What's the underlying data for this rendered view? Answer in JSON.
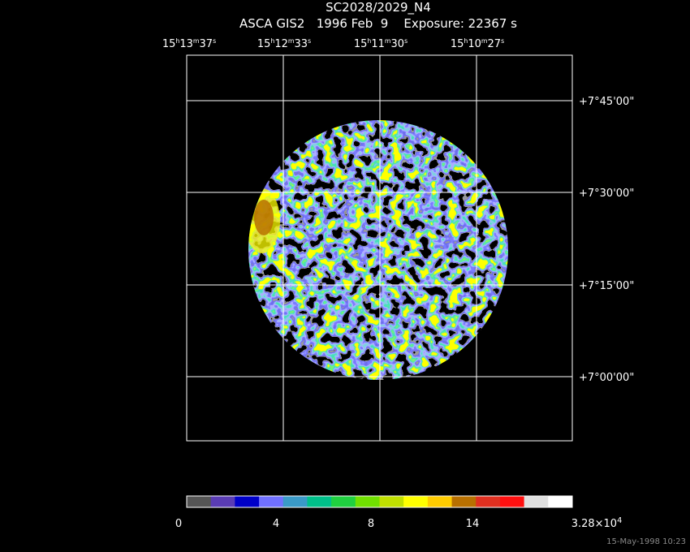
{
  "header": {
    "title": "SC2028/2029_N4",
    "subtitle": "ASCA GIS2   1996 Feb  9    Exposure: 22367 s"
  },
  "ra_labels": [
    [
      {
        "text": "15"
      },
      {
        "text": "h",
        "sup": true
      },
      {
        "text": "13"
      },
      {
        "text": "m",
        "sup": true
      },
      {
        "text": "37"
      },
      {
        "text": "s",
        "sup": true
      }
    ],
    [
      {
        "text": "15"
      },
      {
        "text": "h",
        "sup": true
      },
      {
        "text": "12"
      },
      {
        "text": "m",
        "sup": true
      },
      {
        "text": "33"
      },
      {
        "text": "s",
        "sup": true
      }
    ],
    [
      {
        "text": "15"
      },
      {
        "text": "h",
        "sup": true
      },
      {
        "text": "11"
      },
      {
        "text": "m",
        "sup": true
      },
      {
        "text": "30"
      },
      {
        "text": "s",
        "sup": true
      }
    ],
    [
      {
        "text": "15"
      },
      {
        "text": "h",
        "sup": true
      },
      {
        "text": "10"
      },
      {
        "text": "m",
        "sup": true
      },
      {
        "text": "27"
      },
      {
        "text": "s",
        "sup": true
      }
    ]
  ],
  "dec_labels": [
    "+7°45'00\"",
    "+7°30'00\"",
    "+7°15'00\"",
    "+7°00'00\""
  ],
  "colorbar": {
    "colors": [
      "#555555",
      "#5a3cb4",
      "#0000c8",
      "#7070ff",
      "#3a9ac8",
      "#00c08a",
      "#20d040",
      "#70e000",
      "#c0e000",
      "#ffff00",
      "#ffcc00",
      "#b87000",
      "#e03020",
      "#ff1010",
      "#e0e0e0",
      "#ffffff"
    ],
    "labels": [
      [
        {
          "text": "0"
        }
      ],
      [
        {
          "text": "4"
        }
      ],
      [
        {
          "text": "8"
        }
      ],
      [
        {
          "text": "14"
        }
      ],
      [
        {
          "text": "3.28×10"
        },
        {
          "text": "4",
          "sup": true
        }
      ]
    ]
  },
  "footer": "15-May-1998 10:23"
}
